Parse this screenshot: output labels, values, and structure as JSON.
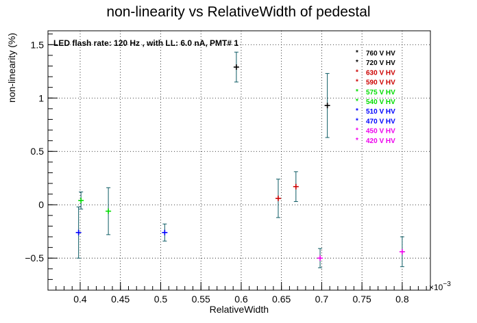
{
  "chart_data": {
    "type": "scatter",
    "title": "non-linearity vs RelativeWidth of pedestal",
    "annotation": "LED flash rate: 120 Hz , with LL: 6.0 nA, PMT# 1",
    "xlabel": "RelativeWidth",
    "ylabel": "non-linearity (%)",
    "x_multiplier": "×10",
    "x_multiplier_exp": "−3",
    "xlim": [
      0.36,
      0.835
    ],
    "ylim": [
      -0.8,
      1.63
    ],
    "grid": true,
    "legend_position": "top-right",
    "x_ticks": [
      {
        "v": 0.4,
        "label": "0.4"
      },
      {
        "v": 0.45,
        "label": "0.45"
      },
      {
        "v": 0.5,
        "label": "0.5"
      },
      {
        "v": 0.55,
        "label": "0.55"
      },
      {
        "v": 0.6,
        "label": "0.6"
      },
      {
        "v": 0.65,
        "label": "0.65"
      },
      {
        "v": 0.7,
        "label": "0.7"
      },
      {
        "v": 0.75,
        "label": "0.75"
      },
      {
        "v": 0.8,
        "label": "0.8"
      }
    ],
    "y_ticks": [
      {
        "v": -0.5,
        "label": "−0.5"
      },
      {
        "v": 0,
        "label": "0"
      },
      {
        "v": 0.5,
        "label": "0.5"
      },
      {
        "v": 1,
        "label": "1"
      },
      {
        "v": 1.5,
        "label": "1.5"
      }
    ],
    "series": [
      {
        "name": "760 V HV",
        "color": "#000000",
        "x": 0.594,
        "y": 1.29,
        "err": 0.14
      },
      {
        "name": "720 V HV",
        "color": "#000000",
        "x": 0.707,
        "y": 0.93,
        "err": 0.3
      },
      {
        "name": "630 V HV",
        "color": "#cc0000",
        "x": 0.668,
        "y": 0.17,
        "err": 0.14
      },
      {
        "name": "590 V HV",
        "color": "#cc0000",
        "x": 0.646,
        "y": 0.06,
        "err": 0.18
      },
      {
        "name": "575 V HV",
        "color": "#00dd00",
        "x": 0.435,
        "y": -0.06,
        "err": 0.22
      },
      {
        "name": "540 V HV",
        "color": "#00dd00",
        "x": 0.401,
        "y": 0.04,
        "err": 0.08
      },
      {
        "name": "510 V HV",
        "color": "#0000ff",
        "x": 0.505,
        "y": -0.26,
        "err": 0.08
      },
      {
        "name": "470 V HV",
        "color": "#0000ff",
        "x": 0.398,
        "y": -0.26,
        "err": 0.24
      },
      {
        "name": "450 V HV",
        "color": "#ee00ee",
        "x": 0.8,
        "y": -0.44,
        "err": 0.14
      },
      {
        "name": "420 V HV",
        "color": "#ee00ee",
        "x": 0.698,
        "y": -0.5,
        "err": 0.09
      }
    ]
  }
}
